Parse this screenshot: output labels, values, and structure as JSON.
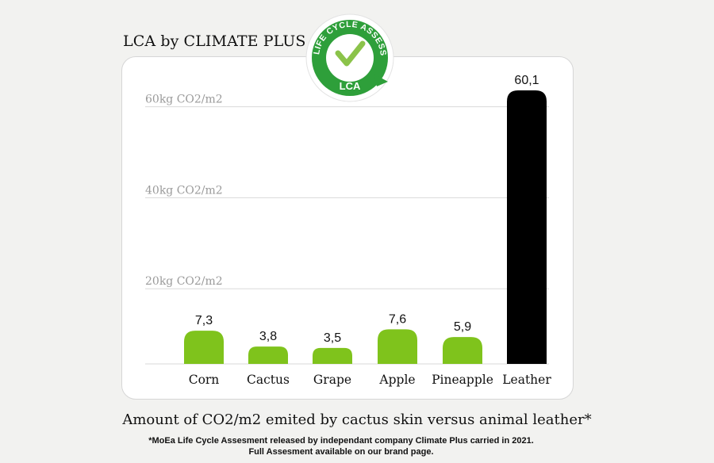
{
  "header": {
    "title": "LCA by CLIMATE PLUS"
  },
  "badge": {
    "ring_text": "LIFE CYCLE ASSESSMENT",
    "center_text": "LCA"
  },
  "colors": {
    "accent_green": "#7fc31c",
    "leather_black": "#000000",
    "badge_green": "#2e9f3a"
  },
  "chart_data": {
    "type": "bar",
    "title": "LCA by CLIMATE PLUS",
    "categories": [
      "Corn",
      "Cactus",
      "Grape",
      "Apple",
      "Pineapple",
      "Leather"
    ],
    "values": [
      7.3,
      3.8,
      3.5,
      7.6,
      5.9,
      60.1
    ],
    "value_labels": [
      "7,3",
      "3,8",
      "3,5",
      "7,6",
      "5,9",
      "60,1"
    ],
    "bar_colors": [
      "#7fc31c",
      "#7fc31c",
      "#7fc31c",
      "#7fc31c",
      "#7fc31c",
      "#000000"
    ],
    "gridlines": [
      {
        "value": 20,
        "label": "20kg CO2/m2"
      },
      {
        "value": 40,
        "label": "40kg CO2/m2"
      },
      {
        "value": 60,
        "label": "60kg CO2/m2"
      }
    ],
    "ylim": [
      0,
      60.1
    ],
    "grid": true,
    "legend": "none"
  },
  "caption": "Amount of CO2/m2 emited by cactus skin versus animal leather*",
  "footnote": {
    "line1": "*MoEa Life Cycle Assesment released by independant company Climate Plus carried in 2021.",
    "line2": "Full Assesment available on our brand page."
  }
}
